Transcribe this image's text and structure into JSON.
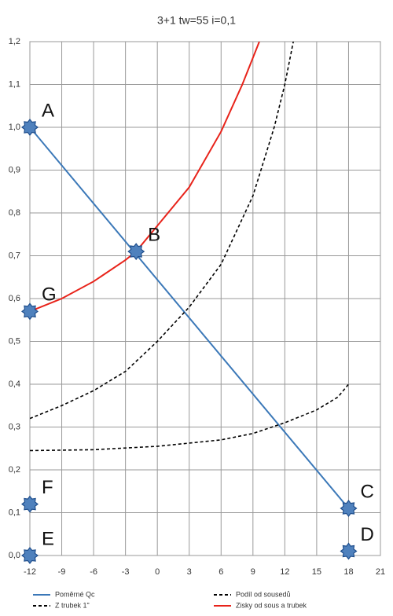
{
  "chart_data": {
    "type": "line",
    "title": "3+1 tw=55 i=0,1",
    "xlim": [
      -12,
      21
    ],
    "ylim": [
      0,
      1.2
    ],
    "xticks": [
      -12,
      -9,
      -6,
      -3,
      0,
      3,
      6,
      9,
      12,
      15,
      18,
      21
    ],
    "yticks": [
      {
        "value": 0,
        "label": "0,0"
      },
      {
        "value": 0.1,
        "label": "0,1"
      },
      {
        "value": 0.2,
        "label": "0,2"
      },
      {
        "value": 0.3,
        "label": "0,3"
      },
      {
        "value": 0.4,
        "label": "0,4"
      },
      {
        "value": 0.5,
        "label": "0,5"
      },
      {
        "value": 0.6,
        "label": "0,6"
      },
      {
        "value": 0.7,
        "label": "0,7"
      },
      {
        "value": 0.8,
        "label": "0,8"
      },
      {
        "value": 0.9,
        "label": "0,9"
      },
      {
        "value": 1.0,
        "label": "1,0"
      },
      {
        "value": 1.1,
        "label": "1,1"
      },
      {
        "value": 1.2,
        "label": "1,2"
      }
    ],
    "grid": true,
    "series": [
      {
        "name": "Poměrné Qc",
        "color": "#3b78b8",
        "dashed": false,
        "x": [
          -12,
          18
        ],
        "values": [
          1.0,
          0.11
        ]
      },
      {
        "name": "Podíl od sousedů",
        "color": "#000000",
        "dashed": true,
        "x": [
          -12,
          -9,
          -6,
          -3,
          0,
          3,
          6,
          9,
          11,
          12,
          12.8
        ],
        "values": [
          0.32,
          0.35,
          0.385,
          0.43,
          0.5,
          0.58,
          0.68,
          0.84,
          1.0,
          1.1,
          1.2
        ]
      },
      {
        "name": "Z trubek 1\"",
        "color": "#000000",
        "dashed": true,
        "x": [
          -12,
          -6,
          0,
          6,
          9,
          12,
          15,
          17,
          18
        ],
        "values": [
          0.245,
          0.247,
          0.255,
          0.27,
          0.285,
          0.31,
          0.34,
          0.37,
          0.4
        ]
      },
      {
        "name": "Zisky od sous a trubek",
        "color": "#e8231a",
        "dashed": false,
        "x": [
          -12,
          -9,
          -6,
          -3,
          -2,
          0,
          3,
          6,
          8,
          9.6
        ],
        "values": [
          0.57,
          0.6,
          0.64,
          0.69,
          0.71,
          0.77,
          0.86,
          0.99,
          1.1,
          1.2
        ]
      }
    ],
    "points": [
      {
        "label": "A",
        "x": -12,
        "y": 1.0
      },
      {
        "label": "B",
        "x": -2,
        "y": 0.71
      },
      {
        "label": "C",
        "x": 18,
        "y": 0.11
      },
      {
        "label": "D",
        "x": 18,
        "y": 0.01
      },
      {
        "label": "E",
        "x": -12,
        "y": 0.0
      },
      {
        "label": "F",
        "x": -12,
        "y": 0.12
      },
      {
        "label": "G",
        "x": -12,
        "y": 0.57
      }
    ]
  }
}
